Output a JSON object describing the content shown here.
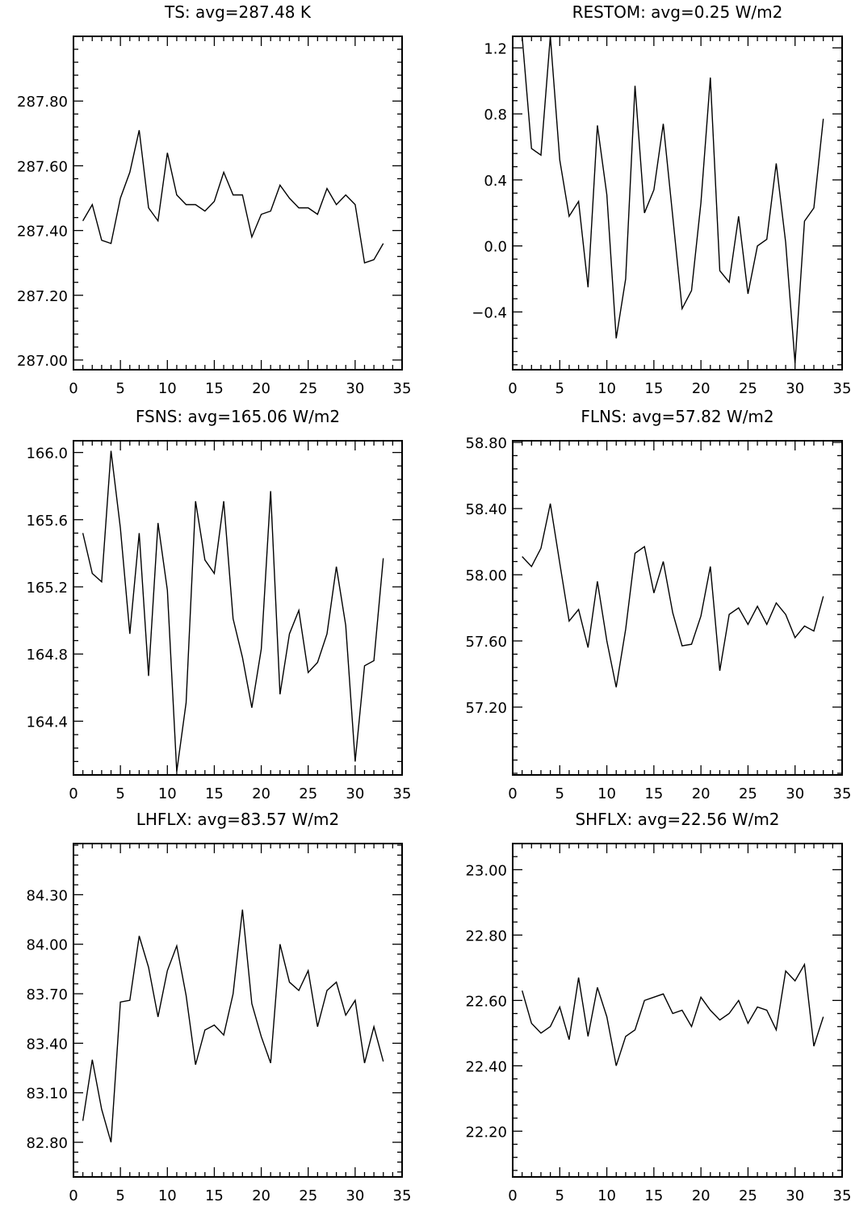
{
  "chart_data": [
    {
      "type": "line",
      "title": "TS: avg=287.48 K",
      "xlim": [
        0,
        35
      ],
      "ylim": [
        286.97,
        288.0
      ],
      "xticks": [
        "0",
        "5",
        "10",
        "15",
        "20",
        "25",
        "30",
        "35"
      ],
      "yticks": [
        "287.00",
        "287.20",
        "287.40",
        "287.60",
        "287.80"
      ],
      "x": [
        1,
        2,
        3,
        4,
        5,
        6,
        7,
        8,
        9,
        10,
        11,
        12,
        13,
        14,
        15,
        16,
        17,
        18,
        19,
        20,
        21,
        22,
        23,
        24,
        25,
        26,
        27,
        28,
        29,
        30,
        31,
        32,
        33
      ],
      "values": [
        287.43,
        287.48,
        287.37,
        287.36,
        287.5,
        287.58,
        287.71,
        287.47,
        287.43,
        287.64,
        287.51,
        287.48,
        287.48,
        287.46,
        287.49,
        287.58,
        287.51,
        287.51,
        287.38,
        287.45,
        287.46,
        287.54,
        287.5,
        287.47,
        287.47,
        287.45,
        287.53,
        287.48,
        287.51,
        287.48,
        287.3,
        287.31,
        287.36
      ],
      "grid": false
    },
    {
      "type": "line",
      "title": "RESTOM: avg=0.25 W/m2",
      "xlim": [
        0,
        35
      ],
      "ylim": [
        -0.75,
        1.27
      ],
      "xticks": [
        "0",
        "5",
        "10",
        "15",
        "20",
        "25",
        "30",
        "35"
      ],
      "yticks": [
        "−0.4",
        "0.0",
        "0.4",
        "0.8",
        "1.2"
      ],
      "x": [
        1,
        2,
        3,
        4,
        5,
        6,
        7,
        8,
        9,
        10,
        11,
        12,
        13,
        14,
        15,
        16,
        17,
        18,
        19,
        20,
        21,
        22,
        23,
        24,
        25,
        26,
        27,
        28,
        29,
        30,
        31,
        32,
        33
      ],
      "values": [
        1.27,
        0.59,
        0.55,
        1.27,
        0.52,
        0.18,
        0.27,
        -0.25,
        0.73,
        0.31,
        -0.56,
        -0.2,
        0.97,
        0.2,
        0.34,
        0.74,
        0.18,
        -0.38,
        -0.27,
        0.26,
        1.02,
        -0.15,
        -0.22,
        0.18,
        -0.29,
        0.0,
        0.04,
        0.5,
        0.02,
        -0.71,
        0.15,
        0.23,
        0.77
      ],
      "grid": false
    },
    {
      "type": "line",
      "title": "FSNS: avg=165.06 W/m2",
      "xlim": [
        0,
        35
      ],
      "ylim": [
        164.08,
        166.07
      ],
      "xticks": [
        "0",
        "5",
        "10",
        "15",
        "20",
        "25",
        "30",
        "35"
      ],
      "yticks": [
        "164.4",
        "164.8",
        "165.2",
        "165.6",
        "166.0"
      ],
      "x": [
        1,
        2,
        3,
        4,
        5,
        6,
        7,
        8,
        9,
        10,
        11,
        12,
        13,
        14,
        15,
        16,
        17,
        18,
        19,
        20,
        21,
        22,
        23,
        24,
        25,
        26,
        27,
        28,
        29,
        30,
        31,
        32,
        33
      ],
      "values": [
        165.52,
        165.28,
        165.23,
        166.01,
        165.55,
        164.92,
        165.52,
        164.67,
        165.58,
        165.18,
        164.1,
        164.51,
        165.71,
        165.36,
        165.28,
        165.71,
        165.01,
        164.78,
        164.48,
        164.83,
        165.77,
        164.56,
        164.92,
        165.06,
        164.69,
        164.75,
        164.92,
        165.32,
        164.97,
        164.16,
        164.73,
        164.76,
        165.37
      ],
      "grid": false
    },
    {
      "type": "line",
      "title": "FLNS: avg=57.82 W/m2",
      "xlim": [
        0,
        35
      ],
      "ylim": [
        56.79,
        58.81
      ],
      "xticks": [
        "0",
        "5",
        "10",
        "15",
        "20",
        "25",
        "30",
        "35"
      ],
      "yticks": [
        "57.20",
        "57.60",
        "58.00",
        "58.40",
        "58.80"
      ],
      "x": [
        1,
        2,
        3,
        4,
        5,
        6,
        7,
        8,
        9,
        10,
        11,
        12,
        13,
        14,
        15,
        16,
        17,
        18,
        19,
        20,
        21,
        22,
        23,
        24,
        25,
        26,
        27,
        28,
        29,
        30,
        31,
        32,
        33
      ],
      "values": [
        58.11,
        58.05,
        58.16,
        58.43,
        58.07,
        57.72,
        57.79,
        57.56,
        57.96,
        57.6,
        57.32,
        57.67,
        58.13,
        58.17,
        57.89,
        58.08,
        57.77,
        57.57,
        57.58,
        57.75,
        58.05,
        57.42,
        57.76,
        57.8,
        57.7,
        57.81,
        57.7,
        57.83,
        57.76,
        57.62,
        57.69,
        57.66,
        57.87
      ],
      "grid": false
    },
    {
      "type": "line",
      "title": "LHFLX: avg=83.57 W/m2",
      "xlim": [
        0,
        35
      ],
      "ylim": [
        82.59,
        84.61
      ],
      "xticks": [
        "0",
        "5",
        "10",
        "15",
        "20",
        "25",
        "30",
        "35"
      ],
      "yticks": [
        "82.80",
        "83.10",
        "83.40",
        "83.70",
        "84.00",
        "84.30"
      ],
      "x": [
        1,
        2,
        3,
        4,
        5,
        6,
        7,
        8,
        9,
        10,
        11,
        12,
        13,
        14,
        15,
        16,
        17,
        18,
        19,
        20,
        21,
        22,
        23,
        24,
        25,
        26,
        27,
        28,
        29,
        30,
        31,
        32,
        33
      ],
      "values": [
        82.93,
        83.3,
        83.0,
        82.8,
        83.65,
        83.66,
        84.05,
        83.86,
        83.56,
        83.84,
        83.99,
        83.69,
        83.27,
        83.48,
        83.51,
        83.45,
        83.7,
        84.21,
        83.64,
        83.44,
        83.28,
        84.0,
        83.77,
        83.72,
        83.84,
        83.5,
        83.72,
        83.77,
        83.57,
        83.66,
        83.28,
        83.5,
        83.29
      ],
      "grid": false
    },
    {
      "type": "line",
      "title": "SHFLX: avg=22.56 W/m2",
      "xlim": [
        0,
        35
      ],
      "ylim": [
        22.06,
        23.08
      ],
      "xticks": [
        "0",
        "5",
        "10",
        "15",
        "20",
        "25",
        "30",
        "35"
      ],
      "yticks": [
        "22.20",
        "22.40",
        "22.60",
        "22.80",
        "23.00"
      ],
      "x": [
        1,
        2,
        3,
        4,
        5,
        6,
        7,
        8,
        9,
        10,
        11,
        12,
        13,
        14,
        15,
        16,
        17,
        18,
        19,
        20,
        21,
        22,
        23,
        24,
        25,
        26,
        27,
        28,
        29,
        30,
        31,
        32,
        33
      ],
      "values": [
        22.63,
        22.53,
        22.5,
        22.52,
        22.58,
        22.48,
        22.67,
        22.49,
        22.64,
        22.55,
        22.4,
        22.49,
        22.51,
        22.6,
        22.61,
        22.62,
        22.56,
        22.57,
        22.52,
        22.61,
        22.57,
        22.54,
        22.56,
        22.6,
        22.53,
        22.58,
        22.57,
        22.51,
        22.69,
        22.66,
        22.71,
        22.46,
        22.55
      ],
      "grid": false
    }
  ]
}
